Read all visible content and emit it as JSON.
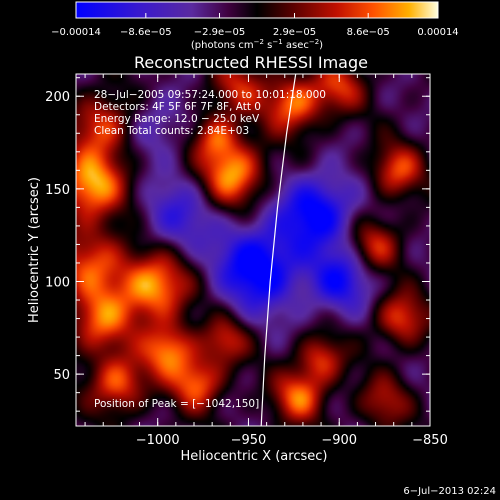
{
  "chart_data": {
    "type": "heatmap",
    "title": "Reconstructed RHESSI Image",
    "xlabel": "Heliocentric X (arcsec)",
    "ylabel": "Heliocentric Y (arcsec)",
    "xlim": [
      -1045,
      -850
    ],
    "ylim": [
      22,
      212
    ],
    "x_ticks": [
      {
        "value": -1000,
        "label": "−1000"
      },
      {
        "value": -950,
        "label": "−950"
      },
      {
        "value": -900,
        "label": "−900"
      },
      {
        "value": -850,
        "label": "−850"
      }
    ],
    "y_ticks": [
      {
        "value": 50,
        "label": "50"
      },
      {
        "value": 100,
        "label": "100"
      },
      {
        "value": 150,
        "label": "150"
      },
      {
        "value": 200,
        "label": "200"
      }
    ],
    "colorbar": {
      "range": [
        -0.00014,
        0.00014
      ],
      "ticks": [
        {
          "value": -0.00014,
          "label": "−0.00014"
        },
        {
          "value": -8.6e-05,
          "label": "−8.6e−05"
        },
        {
          "value": -2.9e-05,
          "label": "−2.9e−05"
        },
        {
          "value": 2.9e-05,
          "label": "2.9e−05"
        },
        {
          "value": 8.6e-05,
          "label": "8.6e−05"
        },
        {
          "value": 0.00014,
          "label": "0.00014"
        }
      ],
      "unit_main": "(photons cm",
      "unit_exp1": "−2",
      "unit_mid": " s",
      "unit_exp2": "−1",
      "unit_mid2": " asec",
      "unit_exp3": "−2",
      "unit_end": ")"
    },
    "annotations": {
      "time_range": "28−Jul−2005 09:57:24.000 to 10:01:18.000",
      "detectors": "Detectors: 4F 5F 6F 7F 8F, Att 0",
      "energy": "Energy Range: 12.0 − 25.0 keV",
      "clean": "Clean     Total counts: 2.84E+03",
      "peak": "Position of Peak = [−1042,150]"
    },
    "limb_curve": [
      [
        -943,
        22
      ],
      [
        -941,
        60
      ],
      [
        -938,
        100
      ],
      [
        -934,
        140
      ],
      [
        -929,
        180
      ],
      [
        -924,
        212
      ]
    ],
    "intensity_blobs": [
      {
        "x": -1037,
        "y": 152,
        "amp": 1.0,
        "r": 13
      },
      {
        "x": -1035,
        "y": 110,
        "amp": 0.7,
        "r": 14
      },
      {
        "x": -1032,
        "y": 78,
        "amp": 0.75,
        "r": 12
      },
      {
        "x": -1030,
        "y": 185,
        "amp": 0.7,
        "r": 12
      },
      {
        "x": -1022,
        "y": 45,
        "amp": 0.8,
        "r": 11
      },
      {
        "x": -1002,
        "y": 97,
        "amp": 1.0,
        "r": 13
      },
      {
        "x": -994,
        "y": 63,
        "amp": 0.85,
        "r": 10
      },
      {
        "x": -978,
        "y": 45,
        "amp": 0.8,
        "r": 10
      },
      {
        "x": -968,
        "y": 178,
        "amp": 0.65,
        "r": 9
      },
      {
        "x": -958,
        "y": 158,
        "amp": 0.95,
        "r": 12
      },
      {
        "x": -956,
        "y": 205,
        "amp": 0.55,
        "r": 11
      },
      {
        "x": -963,
        "y": 68,
        "amp": 0.6,
        "r": 9
      },
      {
        "x": -925,
        "y": 196,
        "amp": 0.85,
        "r": 11
      },
      {
        "x": -900,
        "y": 205,
        "amp": 0.6,
        "r": 10
      },
      {
        "x": -922,
        "y": 38,
        "amp": 0.8,
        "r": 10
      },
      {
        "x": -910,
        "y": 58,
        "amp": 0.65,
        "r": 9
      },
      {
        "x": -880,
        "y": 120,
        "amp": 0.6,
        "r": 10
      },
      {
        "x": -868,
        "y": 160,
        "amp": 0.7,
        "r": 10
      },
      {
        "x": -866,
        "y": 80,
        "amp": 0.7,
        "r": 10
      },
      {
        "x": -875,
        "y": 35,
        "amp": 0.5,
        "r": 10
      },
      {
        "x": -944,
        "y": 108,
        "amp": -1.0,
        "r": 16
      },
      {
        "x": -912,
        "y": 138,
        "amp": -0.9,
        "r": 14
      },
      {
        "x": -900,
        "y": 100,
        "amp": -0.7,
        "r": 12
      },
      {
        "x": -990,
        "y": 135,
        "amp": -0.5,
        "r": 14
      },
      {
        "x": -1000,
        "y": 185,
        "amp": -0.35,
        "r": 12
      }
    ]
  },
  "footer": {
    "timestamp": "6−Jul−2013 02:24"
  },
  "colors": {
    "background": "#000000",
    "axes": "#ffffff",
    "text": "#ffffff"
  }
}
